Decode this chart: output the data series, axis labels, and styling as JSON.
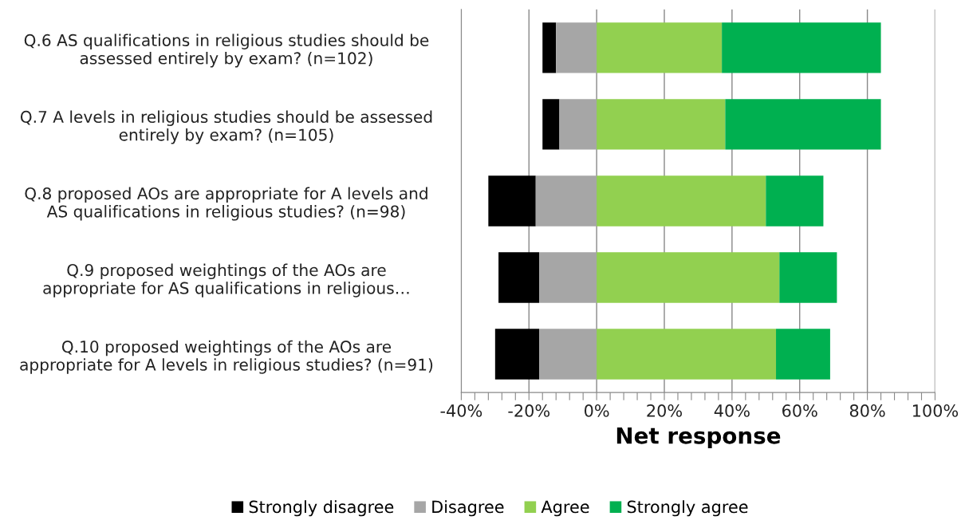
{
  "chart_data": {
    "type": "bar",
    "orientation": "horizontal",
    "stacked": true,
    "xlabel": "Net response",
    "categories": [
      "Q.6 AS qualifications in religious studies should be\nassessed entirely by exam? (n=102)",
      "Q.7 A levels in religious studies should be assessed\nentirely by exam? (n=105)",
      "Q.8 proposed AOs are appropriate for A levels and\nAS qualifications in religious studies? (n=98)",
      "Q.9 proposed weightings of the AOs are\nappropriate for AS qualifications in religious…",
      "Q.10 proposed weightings of the AOs are\nappropriate for A levels in religious studies? (n=91)"
    ],
    "series": [
      {
        "name": "Strongly disagree",
        "color": "#000000",
        "values": [
          -4,
          -5,
          -14,
          -12,
          -13
        ]
      },
      {
        "name": "Disagree",
        "color": "#a6a6a6",
        "values": [
          -12,
          -11,
          -18,
          -17,
          -17
        ]
      },
      {
        "name": "Agree",
        "color": "#92d050",
        "values": [
          37,
          38,
          50,
          54,
          53
        ]
      },
      {
        "name": "Strongly agree",
        "color": "#00b050",
        "values": [
          47,
          46,
          17,
          17,
          16
        ]
      }
    ],
    "xlim": [
      -40,
      100
    ],
    "xticks": [
      {
        "value": -40,
        "label": "-40%"
      },
      {
        "value": -36,
        "label": null
      },
      {
        "value": -32,
        "label": null
      },
      {
        "value": -28,
        "label": null
      },
      {
        "value": -24,
        "label": null
      },
      {
        "value": -20,
        "label": "-20%"
      },
      {
        "value": -16,
        "label": null
      },
      {
        "value": -12,
        "label": null
      },
      {
        "value": -8,
        "label": null
      },
      {
        "value": -4,
        "label": null
      },
      {
        "value": 0,
        "label": "0%"
      },
      {
        "value": 4,
        "label": null
      },
      {
        "value": 8,
        "label": null
      },
      {
        "value": 12,
        "label": null
      },
      {
        "value": 16,
        "label": null
      },
      {
        "value": 20,
        "label": "20%"
      },
      {
        "value": 24,
        "label": null
      },
      {
        "value": 28,
        "label": null
      },
      {
        "value": 32,
        "label": null
      },
      {
        "value": 36,
        "label": null
      },
      {
        "value": 40,
        "label": "40%"
      },
      {
        "value": 44,
        "label": null
      },
      {
        "value": 48,
        "label": null
      },
      {
        "value": 52,
        "label": null
      },
      {
        "value": 56,
        "label": null
      },
      {
        "value": 60,
        "label": "60%"
      },
      {
        "value": 64,
        "label": null
      },
      {
        "value": 68,
        "label": null
      },
      {
        "value": 72,
        "label": null
      },
      {
        "value": 76,
        "label": null
      },
      {
        "value": 80,
        "label": "80%"
      },
      {
        "value": 84,
        "label": null
      },
      {
        "value": 88,
        "label": null
      },
      {
        "value": 92,
        "label": null
      },
      {
        "value": 96,
        "label": null
      },
      {
        "value": 100,
        "label": "100%"
      }
    ],
    "grid": "x",
    "legend": "bottom"
  }
}
